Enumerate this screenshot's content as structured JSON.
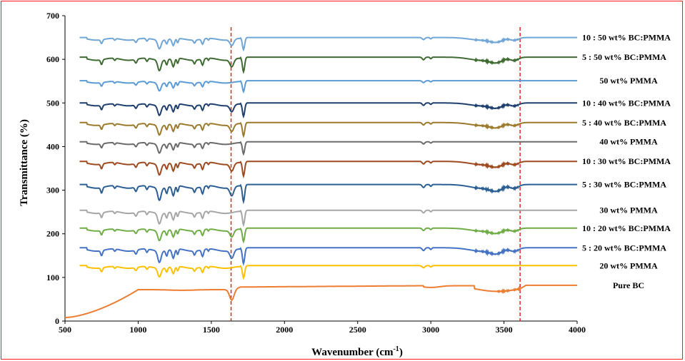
{
  "chart_data": {
    "type": "line",
    "title": "",
    "xlabel": "Wavenumber (cm",
    "xlabel_sup": "-1",
    "xlabel_close": ")",
    "ylabel": "Transmittance (%)",
    "xlim": [
      500,
      4000
    ],
    "ylim": [
      0,
      700
    ],
    "xticks": [
      "500",
      "1000",
      "1500",
      "2000",
      "2500",
      "3000",
      "3500",
      "4000"
    ],
    "yticks": [
      "0",
      "100",
      "200",
      "300",
      "400",
      "500",
      "600",
      "700"
    ],
    "grid": false,
    "legend": "right, inline labels next to each curve",
    "markers": [
      {
        "x": 1635,
        "style": "dashed",
        "color": "#ee1111"
      },
      {
        "x": 3610,
        "style": "dashed",
        "color": "#ee1111"
      }
    ],
    "series": [
      {
        "name": "10 : 50 wt% BC:PMMA",
        "color": "#6fa6d6",
        "offset": 650,
        "scale": 1.0,
        "mode": "blend"
      },
      {
        "name": "5 : 50 wt% BC:PMMA",
        "color": "#3f6b33",
        "offset": 605,
        "scale": 1.2,
        "mode": "blend"
      },
      {
        "name": "50 wt% PMMA",
        "color": "#5b9bd5",
        "offset": 551,
        "scale": 0.9,
        "mode": "pmma"
      },
      {
        "name": "10 : 40 wt% BC:PMMA",
        "color": "#1f3f6e",
        "offset": 500,
        "scale": 1.1,
        "mode": "blend"
      },
      {
        "name": "5 : 40 wt% BC:PMMA",
        "color": "#9c7a2b",
        "offset": 455,
        "scale": 1.1,
        "mode": "blend"
      },
      {
        "name": "40 wt% PMMA",
        "color": "#6b6b6b",
        "offset": 411,
        "scale": 1.0,
        "mode": "pmma"
      },
      {
        "name": "10 : 30 wt% BC:PMMA",
        "color": "#9e4a1f",
        "offset": 366,
        "scale": 1.2,
        "mode": "blend"
      },
      {
        "name": "5 : 30 wt% BC:PMMA",
        "color": "#2b5f94",
        "offset": 313,
        "scale": 1.4,
        "mode": "blend"
      },
      {
        "name": "30 wt% PMMA",
        "color": "#a6a6a6",
        "offset": 254,
        "scale": 1.2,
        "mode": "pmma"
      },
      {
        "name": "10 : 20 wt% BC:PMMA",
        "color": "#70ad47",
        "offset": 213,
        "scale": 1.1,
        "mode": "blend"
      },
      {
        "name": "5 : 20 wt% BC:PMMA",
        "color": "#4472c4",
        "offset": 168,
        "scale": 1.3,
        "mode": "blend"
      },
      {
        "name": "20 wt% PMMA",
        "color": "#ffc000",
        "offset": 127,
        "scale": 1.0,
        "mode": "pmma"
      },
      {
        "name": "Pure BC",
        "color": "#ed7d31",
        "offset": 82,
        "scale": 1.0,
        "mode": "bc"
      }
    ]
  }
}
